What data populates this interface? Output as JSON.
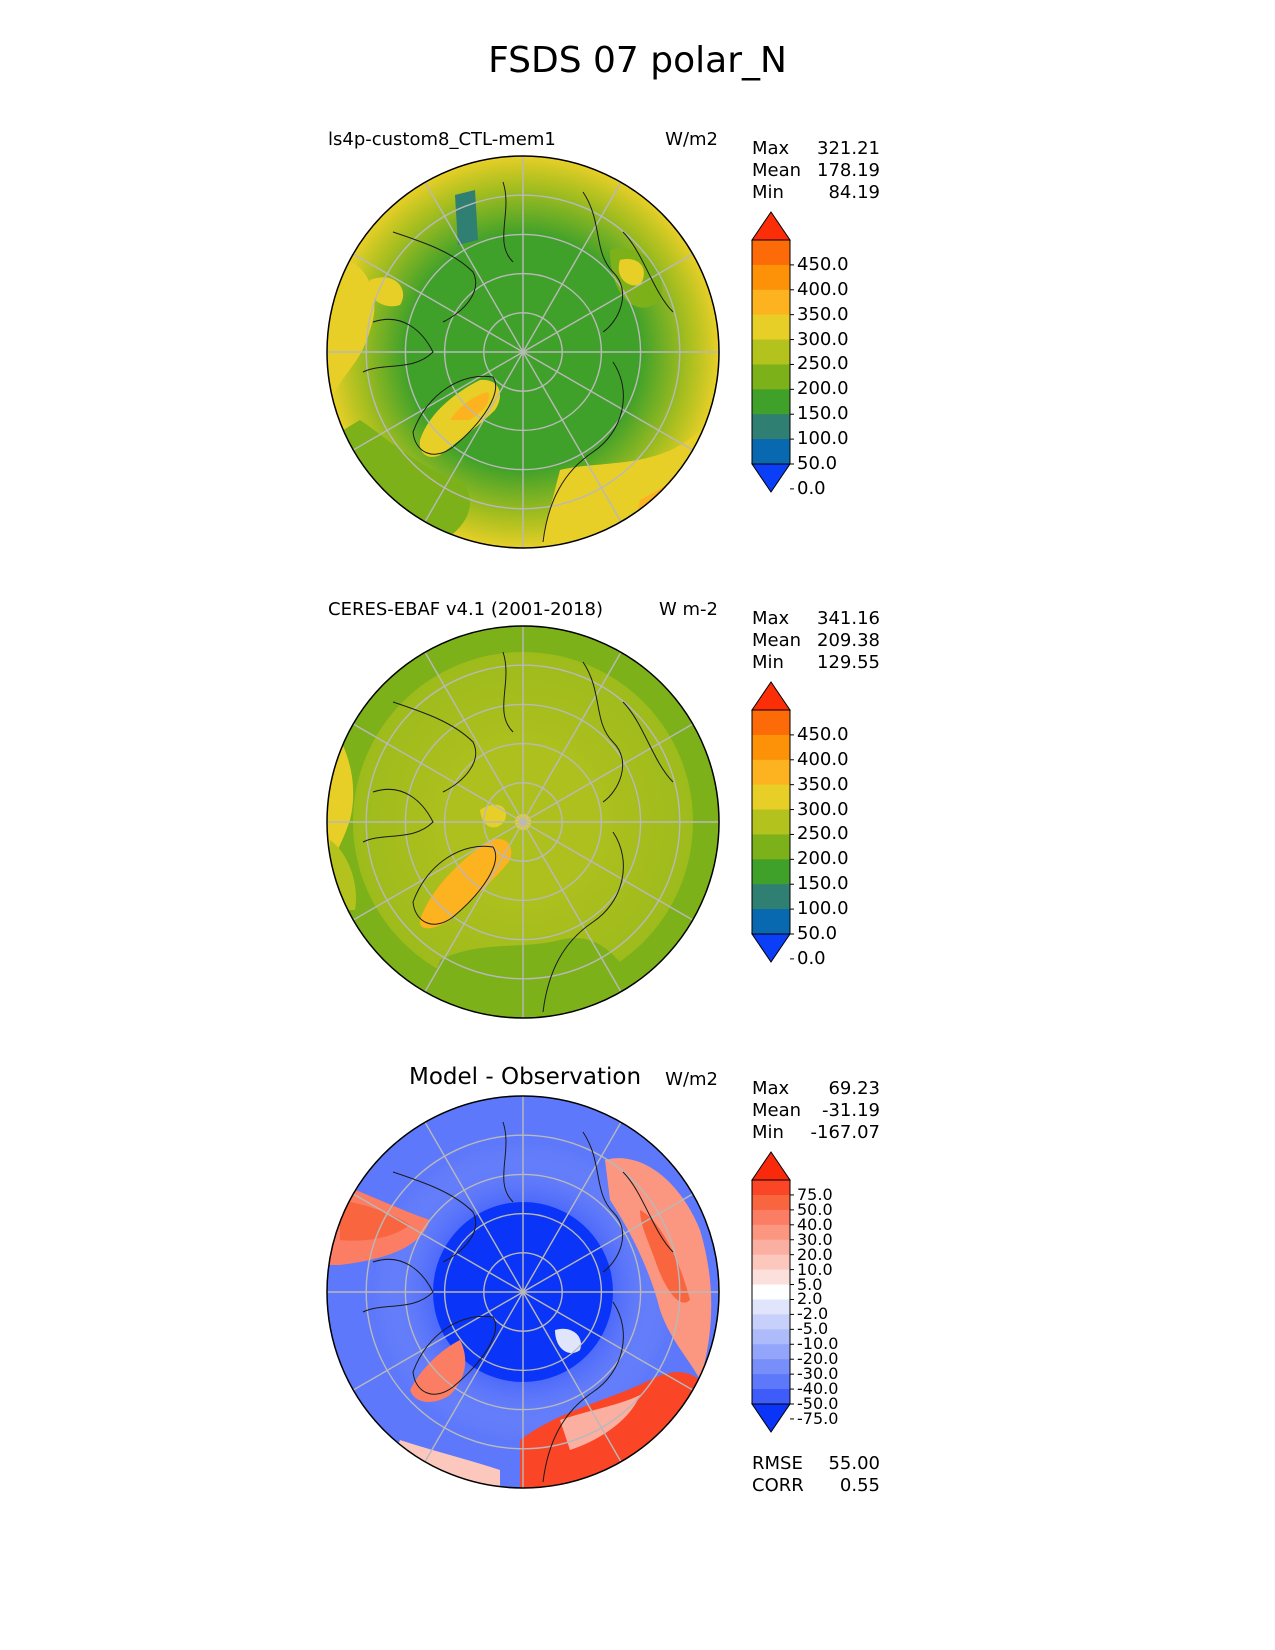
{
  "title": "FSDS 07 polar_N",
  "panels": [
    {
      "name": "test",
      "title": "ls4p-custom8_CTL-mem1",
      "units": "W/m2",
      "stats": [
        {
          "label": "Max",
          "value": "321.21"
        },
        {
          "label": "Mean",
          "value": "178.19"
        },
        {
          "label": "Min",
          "value": "84.19"
        }
      ]
    },
    {
      "name": "reference",
      "title": "CERES-EBAF v4.1 (2001-2018)",
      "units": "W m-2",
      "stats": [
        {
          "label": "Max",
          "value": "341.16"
        },
        {
          "label": "Mean",
          "value": "209.38"
        },
        {
          "label": "Min",
          "value": "129.55"
        }
      ]
    },
    {
      "name": "difference",
      "title": "Model - Observation",
      "units": "W/m2",
      "stats": [
        {
          "label": "Max",
          "value": "69.23"
        },
        {
          "label": "Mean",
          "value": "-31.19"
        },
        {
          "label": "Min",
          "value": "-167.07"
        }
      ],
      "metrics": [
        {
          "label": "RMSE",
          "value": "55.00"
        },
        {
          "label": "CORR",
          "value": "0.55"
        }
      ]
    }
  ],
  "colorbar_main": {
    "labels": [
      "450.0",
      "400.0",
      "350.0",
      "300.0",
      "250.0",
      "200.0",
      "150.0",
      "100.0",
      "50.0",
      "0.0"
    ],
    "colors_top_to_bottom": [
      "#fb2e08",
      "#fd6a08",
      "#fd9108",
      "#fdb31f",
      "#e8cf28",
      "#b4c21e",
      "#7cb11a",
      "#40a12a",
      "#2f7f72",
      "#0868b0",
      "#0a3ff7"
    ]
  },
  "colorbar_diff": {
    "labels": [
      "75.0",
      "50.0",
      "40.0",
      "30.0",
      "20.0",
      "10.0",
      "5.0",
      "2.0",
      "-2.0",
      "-5.0",
      "-10.0",
      "-20.0",
      "-30.0",
      "-40.0",
      "-50.0",
      "-75.0"
    ],
    "colors_top_to_bottom": [
      "#f92a0c",
      "#fa4527",
      "#f9653f",
      "#fb7d63",
      "#fb9780",
      "#fbafa0",
      "#fcc8bd",
      "#fbe0dc",
      "#ffffff",
      "#e0e5fb",
      "#c7d0fb",
      "#adbbfa",
      "#93a4fb",
      "#788ffa",
      "#5d78fa",
      "#3d5cf9",
      "#0a34f7"
    ]
  },
  "map_colors": {
    "test_base": "#40a12a",
    "reference_base": "#7cb11a",
    "diff_base": "#0a34f7"
  }
}
